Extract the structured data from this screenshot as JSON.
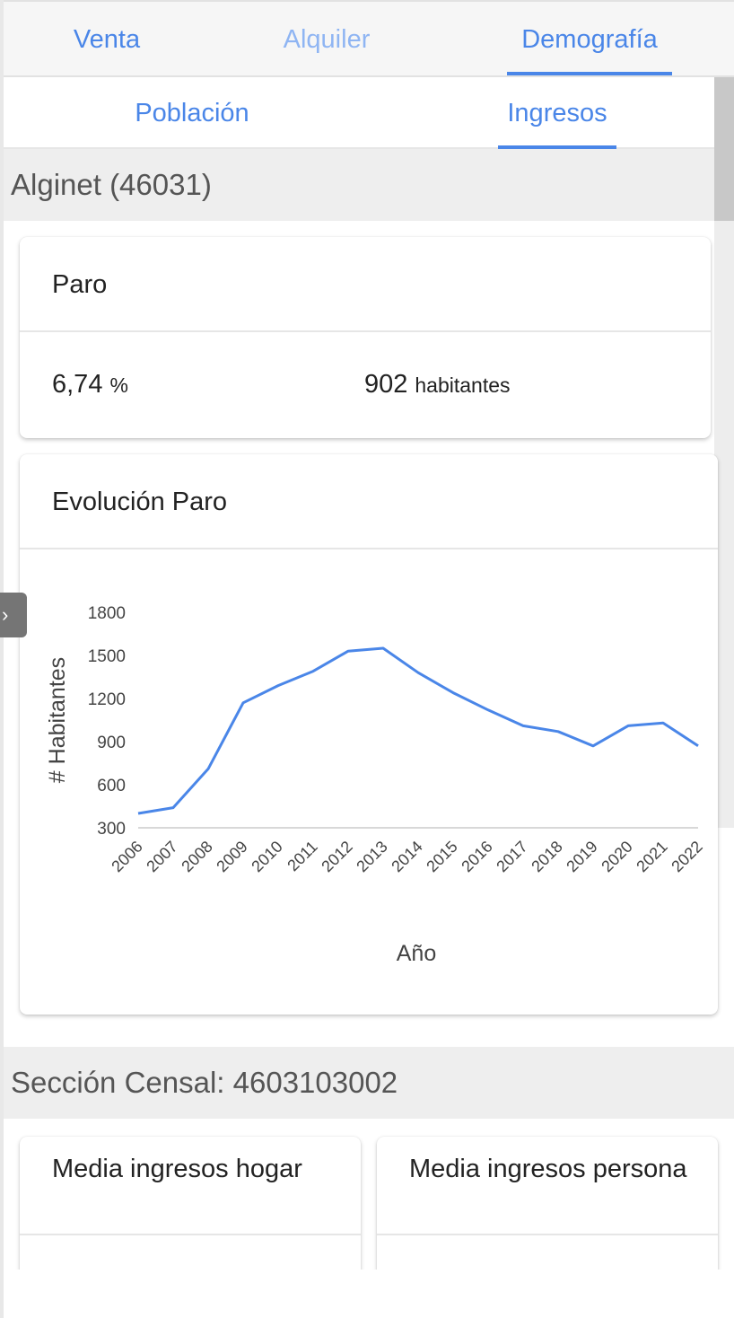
{
  "tabs": {
    "venta": "Venta",
    "alquiler": "Alquiler",
    "demografia": "Demografía"
  },
  "subtabs": {
    "poblacion": "Población",
    "ingresos": "Ingresos"
  },
  "location_header": "Alginet (46031)",
  "paro_card": {
    "title": "Paro",
    "percent_value": "6,74",
    "percent_unit": "%",
    "habitantes_value": "902",
    "habitantes_unit": "habitantes"
  },
  "chart_card": {
    "title": "Evolución Paro"
  },
  "chart_data": {
    "type": "line",
    "x": [
      "2006",
      "2007",
      "2008",
      "2009",
      "2010",
      "2011",
      "2012",
      "2013",
      "2014",
      "2015",
      "2016",
      "2017",
      "2018",
      "2019",
      "2020",
      "2021",
      "2022"
    ],
    "series": [
      {
        "values": [
          400,
          440,
          710,
          1170,
          1290,
          1390,
          1530,
          1550,
          1380,
          1240,
          1120,
          1010,
          970,
          870,
          1010,
          1030,
          870
        ]
      }
    ],
    "xlabel": "Año",
    "ylabel": "# Habitantes",
    "ylim": [
      300,
      1800
    ],
    "yticks": [
      "1800",
      "1500",
      "1200",
      "900",
      "600",
      "300"
    ],
    "line_color": "#4a86e8",
    "grid": false
  },
  "seccion_header": "Sección Censal: 4603103002",
  "income_cards": {
    "hogar_title": "Media ingresos hogar",
    "persona_title": "Media ingresos persona"
  },
  "side_handle_icon": "chevron-right-icon"
}
